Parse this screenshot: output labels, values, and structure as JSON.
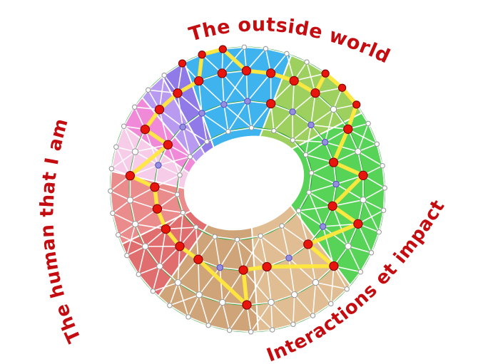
{
  "page": {
    "background": "#ffffff"
  },
  "labels": {
    "color": "#c40d11",
    "top": {
      "text": "The outside world"
    },
    "left": {
      "text": "The human that I am"
    },
    "right": {
      "text": "Interactions et impact"
    }
  },
  "diagram": {
    "type": "torus-network",
    "colors": {
      "edge": "#ffffff",
      "ring_line": "#2e9e3a",
      "path_highlight": "#ffe83d",
      "red_node": "#e8150c",
      "red_node_stroke": "#7e0606",
      "hole": "#ffffff"
    },
    "sectors": [
      {
        "name": "cyan",
        "start": 253,
        "end": 299,
        "color": "#3fb3ee"
      },
      {
        "name": "light-green",
        "start": 299,
        "end": 337,
        "color": "#9ed05f"
      },
      {
        "name": "green",
        "start": 337,
        "end": 412,
        "color": "#57d357"
      },
      {
        "name": "tan-light",
        "start": 52,
        "end": 96,
        "color": "#e0bd92"
      },
      {
        "name": "tan-dark",
        "start": 96,
        "end": 141,
        "color": "#cfa478"
      },
      {
        "name": "red-dark",
        "start": 141,
        "end": 167,
        "color": "#e06e6e"
      },
      {
        "name": "red-light",
        "start": 167,
        "end": 197,
        "color": "#ea8c8c"
      },
      {
        "name": "pink-pale",
        "start": 197,
        "end": 216,
        "color": "#f6cce8"
      },
      {
        "name": "magenta",
        "start": 216,
        "end": 230,
        "color": "#f08ad8"
      },
      {
        "name": "violet-light",
        "start": 230,
        "end": 242,
        "color": "#b89bf0"
      },
      {
        "name": "violet-dark",
        "start": 242,
        "end": 253,
        "color": "#8f7ae8"
      }
    ],
    "green_ring_ts": [
      0.1,
      0.4,
      0.74,
      1.0
    ],
    "rings": [
      {
        "key": "o",
        "t": 1.0,
        "count": 40,
        "fill": "#ffffff",
        "stroke": "#9a9a9a",
        "r": 3.2
      },
      {
        "key": "r2",
        "t": 0.74,
        "count": 30,
        "fill": "#ffffff",
        "stroke": "#9a9a9a",
        "r": 4.2
      },
      {
        "key": "r3",
        "t": 0.4,
        "count": 24,
        "fill": "#958ede",
        "stroke": "#5b53c0",
        "r": 4.2
      },
      {
        "key": "i",
        "t": 0.1,
        "count": 18,
        "fill": "#ffffff",
        "stroke": "#9a9a9a",
        "r": 3.2
      }
    ],
    "yellow_path": [
      "r2:28",
      "r2:29",
      "o:39",
      "o:0",
      "r2:1",
      "r2:2",
      "r2:3",
      "r2:4",
      "o:5",
      "o:6",
      "o:7",
      "r2:6",
      "r3:6",
      "r2:8",
      "r3:8",
      "r2:10",
      "r3:10",
      "r2:12",
      "r3:12",
      "r3:13",
      "r2:16",
      "r3:15",
      "r3:16",
      "r3:17",
      "r3:18",
      "r3:19",
      "r2:24",
      "r3:21",
      "r2:26",
      "r2:27",
      "r2:28"
    ],
    "red_nodes": [
      "o:38",
      "r2:0",
      "r3:2"
    ]
  }
}
